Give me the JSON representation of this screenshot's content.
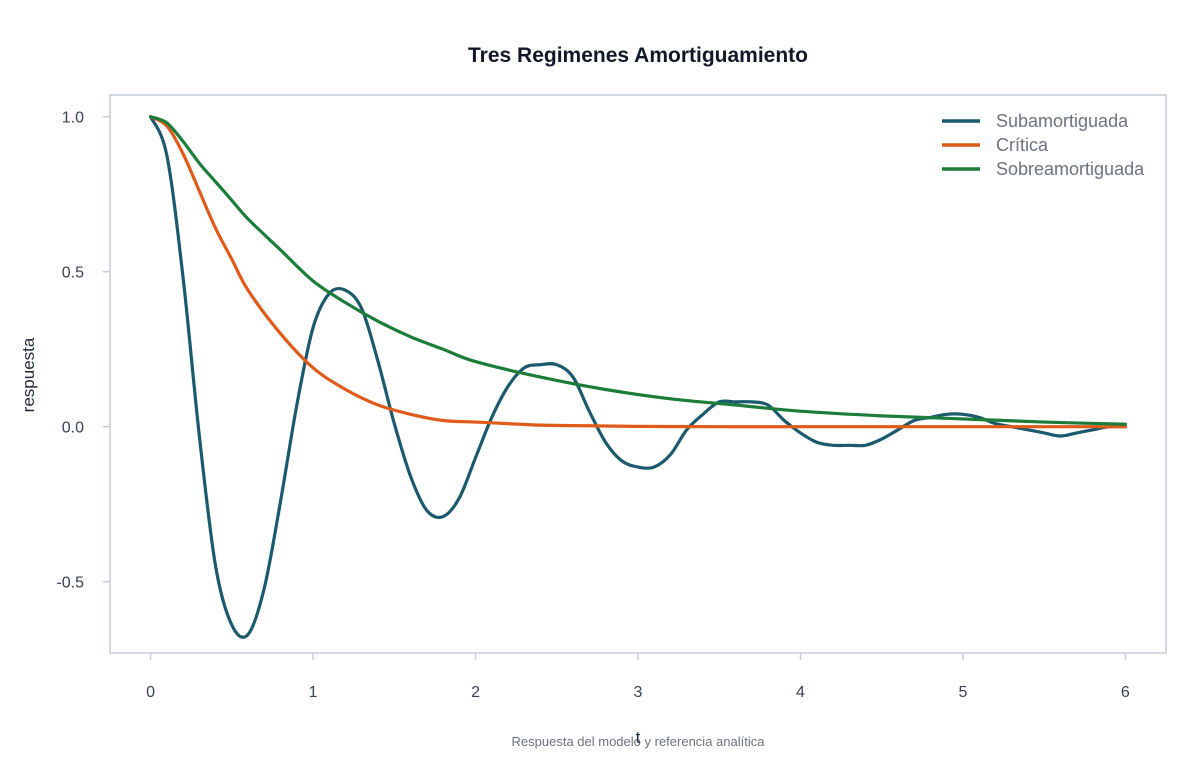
{
  "chart_data": {
    "type": "line",
    "title": "Tres Regimenes Amortiguamiento",
    "xlabel": "t",
    "ylabel": "respuesta",
    "caption": "Respuesta del modelo y referencia analítica",
    "xlim": [
      -0.25,
      6.25
    ],
    "ylim": [
      -0.73,
      1.07
    ],
    "x_ticks": [
      0,
      1,
      2,
      3,
      4,
      5,
      6
    ],
    "x_tick_labels": [
      "0",
      "1",
      "2",
      "3",
      "4",
      "5",
      "6"
    ],
    "y_ticks": [
      -0.5,
      0.0,
      0.5,
      1.0
    ],
    "y_tick_labels": [
      "-0.5",
      "0.0",
      "0.5",
      "1.0"
    ],
    "grid": false,
    "legend_position": "top-right",
    "series": [
      {
        "name": "Subamortiguada",
        "color": "#1b5a6e",
        "x": [
          0.0,
          0.1,
          0.2,
          0.3,
          0.4,
          0.5,
          0.6,
          0.7,
          0.8,
          0.9,
          1.0,
          1.1,
          1.2,
          1.3,
          1.4,
          1.5,
          1.6,
          1.7,
          1.8,
          1.9,
          2.0,
          2.1,
          2.2,
          2.3,
          2.4,
          2.5,
          2.6,
          2.7,
          2.8,
          2.9,
          3.0,
          3.1,
          3.2,
          3.3,
          3.4,
          3.5,
          3.6,
          3.7,
          3.8,
          3.9,
          4.0,
          4.1,
          4.2,
          4.3,
          4.4,
          4.5,
          4.6,
          4.7,
          4.8,
          4.9,
          5.0,
          5.1,
          5.2,
          5.3,
          5.4,
          5.5,
          5.6,
          5.7,
          5.8,
          5.9,
          6.0
        ],
        "y": [
          1.0,
          0.875,
          0.48,
          -0.03,
          -0.45,
          -0.64,
          -0.67,
          -0.52,
          -0.24,
          0.07,
          0.32,
          0.43,
          0.44,
          0.38,
          0.21,
          0.01,
          -0.16,
          -0.27,
          -0.29,
          -0.23,
          -0.1,
          0.03,
          0.13,
          0.19,
          0.2,
          0.2,
          0.16,
          0.05,
          -0.05,
          -0.11,
          -0.13,
          -0.13,
          -0.09,
          -0.01,
          0.04,
          0.08,
          0.08,
          0.08,
          0.07,
          0.02,
          -0.02,
          -0.05,
          -0.06,
          -0.06,
          -0.06,
          -0.04,
          -0.01,
          0.02,
          0.03,
          0.04,
          0.04,
          0.03,
          0.01,
          0.0,
          -0.01,
          -0.02,
          -0.03,
          -0.02,
          -0.01,
          0.0,
          0.0
        ]
      },
      {
        "name": "Crítica",
        "color": "#e05a1a",
        "x": [
          0.0,
          0.1,
          0.2,
          0.3,
          0.4,
          0.5,
          0.6,
          0.8,
          1.0,
          1.2,
          1.4,
          1.6,
          1.8,
          2.0,
          2.2,
          2.4,
          2.7,
          3.0,
          3.5,
          4.0,
          5.0,
          6.0
        ],
        "y": [
          1.0,
          0.97,
          0.88,
          0.76,
          0.64,
          0.54,
          0.44,
          0.3,
          0.19,
          0.12,
          0.07,
          0.04,
          0.02,
          0.015,
          0.01,
          0.005,
          0.003,
          0.001,
          0.0,
          0.0,
          0.0,
          0.0
        ]
      },
      {
        "name": "Sobreamortiguada",
        "color": "#1c7d3a",
        "x": [
          0.0,
          0.1,
          0.2,
          0.3,
          0.4,
          0.5,
          0.6,
          0.8,
          1.0,
          1.2,
          1.4,
          1.6,
          1.8,
          2.0,
          2.4,
          2.8,
          3.2,
          3.6,
          4.0,
          4.5,
          5.0,
          5.5,
          6.0
        ],
        "y": [
          1.0,
          0.98,
          0.92,
          0.85,
          0.79,
          0.73,
          0.67,
          0.57,
          0.47,
          0.4,
          0.34,
          0.29,
          0.25,
          0.21,
          0.16,
          0.12,
          0.09,
          0.07,
          0.05,
          0.035,
          0.025,
          0.015,
          0.008
        ]
      }
    ]
  }
}
